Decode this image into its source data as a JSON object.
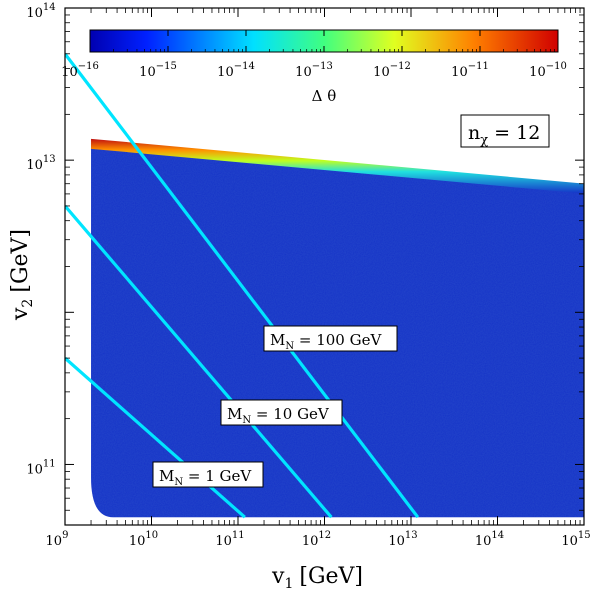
{
  "chart_data": {
    "type": "scatter",
    "title": "",
    "x_axis": {
      "label_main": "v",
      "label_sub": "1",
      "label_unit": "[GeV]",
      "scale": "log",
      "range": [
        1000000000.0,
        1000000000000000.0
      ],
      "ticks": [
        {
          "value": 1000000000.0,
          "label": "10",
          "exp": "9"
        },
        {
          "value": 10000000000.0,
          "label": "10",
          "exp": "10"
        },
        {
          "value": 100000000000.0,
          "label": "10",
          "exp": "11"
        },
        {
          "value": 1000000000000.0,
          "label": "10",
          "exp": "12"
        },
        {
          "value": 10000000000000.0,
          "label": "10",
          "exp": "13"
        },
        {
          "value": 100000000000000.0,
          "label": "10",
          "exp": "14"
        },
        {
          "value": 1000000000000000.0,
          "label": "10",
          "exp": "15"
        }
      ]
    },
    "y_axis": {
      "label_main": "v",
      "label_sub": "2",
      "label_unit": "[GeV]",
      "scale": "log",
      "range": [
        40000000000.0,
        100000000000000.0
      ],
      "ticks": [
        {
          "value": 100000000000.0,
          "label": "10",
          "exp": "11"
        },
        {
          "value": 10000000000000.0,
          "label": "10",
          "exp": "13"
        },
        {
          "value": 100000000000000.0,
          "label": "10",
          "exp": "14"
        }
      ]
    },
    "colorbar": {
      "label": "Δ θ",
      "scale": "log",
      "range": [
        1e-16,
        1e-10
      ],
      "colormap": "jet",
      "ticks": [
        {
          "value": 1e-16,
          "label": "10",
          "exp": "−16"
        },
        {
          "value": 1e-15,
          "label": "10",
          "exp": "−15"
        },
        {
          "value": 1e-14,
          "label": "10",
          "exp": "−14"
        },
        {
          "value": 1e-13,
          "label": "10",
          "exp": "−13"
        },
        {
          "value": 1e-12,
          "label": "10",
          "exp": "−12"
        },
        {
          "value": 1e-11,
          "label": "10",
          "exp": "−11"
        },
        {
          "value": 1e-10,
          "label": "10",
          "exp": "−10"
        }
      ]
    },
    "scatter_region": {
      "description_color": "#1532c8",
      "x_min": 2000000000.0,
      "y_min": 45000000000.0,
      "upper_boundary": [
        {
          "x": 2000000000.0,
          "y": 13000000000000.0
        },
        {
          "x": 1000000000000000.0,
          "y": 6500000000000.0
        }
      ],
      "boundary_gradient_colors": [
        "#1532c8",
        "#00d8ff",
        "#40e040",
        "#ffe000",
        "#ff8000",
        "#d00000"
      ]
    },
    "series": [
      {
        "name": "M_N = 1 GeV",
        "color": "#00e5ff",
        "points": [
          {
            "x": 1000000000.0,
            "y": 500000000000.0
          },
          {
            "x": 120000000000.0,
            "y": 45000000000.0
          }
        ]
      },
      {
        "name": "M_N = 10 GeV",
        "color": "#00e5ff",
        "points": [
          {
            "x": 1000000000.0,
            "y": 5000000000000.0
          },
          {
            "x": 1200000000000.0,
            "y": 45000000000.0
          }
        ]
      },
      {
        "name": "M_N = 100 GeV",
        "color": "#00e5ff",
        "points": [
          {
            "x": 1000000000.0,
            "y": 50000000000000.0
          },
          {
            "x": 12000000000000.0,
            "y": 45000000000.0
          }
        ]
      }
    ],
    "annotations": [
      {
        "id": "nchi",
        "main": "n",
        "sub": "χ",
        "rest": " = 12"
      },
      {
        "id": "mn100",
        "main": "M",
        "sub": "N",
        "rest": " = 100 GeV"
      },
      {
        "id": "mn10",
        "main": "M",
        "sub": "N",
        "rest": " = 10 GeV"
      },
      {
        "id": "mn1",
        "main": "M",
        "sub": "N",
        "rest": " = 1 GeV"
      }
    ],
    "grid": false
  }
}
